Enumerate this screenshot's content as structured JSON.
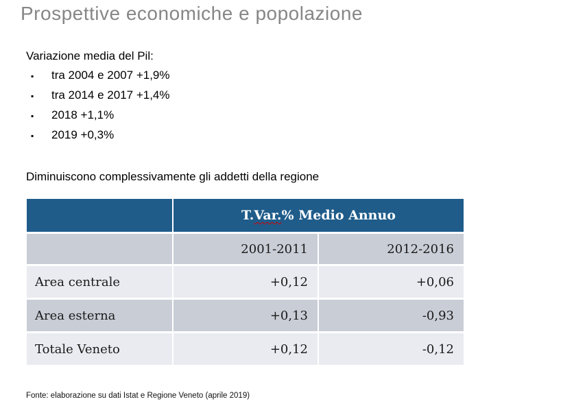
{
  "slide": {
    "title": "Prospettive economiche e popolazione",
    "intro_heading": "Variazione media del Pil:",
    "bullet_glyph": "▪",
    "bullets": [
      "tra 2004 e 2007 +1,9%",
      "tra 2014 e 2017 +1,4%",
      "2018 +1,1%",
      "2019 +0,3%"
    ],
    "subheading": "Diminuiscono complessivamente gli addetti della regione",
    "footer": "Fonte: elaborazione su dati Istat e Regione Veneto (aprile 2019)"
  },
  "table": {
    "merged_header": {
      "prefix": "T. ",
      "misspelled": "Var.",
      "suffix": " % Medio Annuo"
    },
    "column_headers": [
      "2001-2011",
      "2012-2016"
    ],
    "rows": [
      {
        "label": "Area centrale",
        "values": [
          "+0,12",
          "+0,06"
        ]
      },
      {
        "label": "Area esterna",
        "values": [
          "+0,13",
          "-0,93"
        ]
      },
      {
        "label": "Totale Veneto",
        "values": [
          "+0,12",
          "-0,12"
        ]
      }
    ],
    "colors": {
      "header_bg": "#1f5c8a",
      "row_gray": "#c9cdd6",
      "row_light": "#e9ebf0",
      "title_gray": "#868686",
      "spellcheck_underline": "#d40000"
    }
  }
}
